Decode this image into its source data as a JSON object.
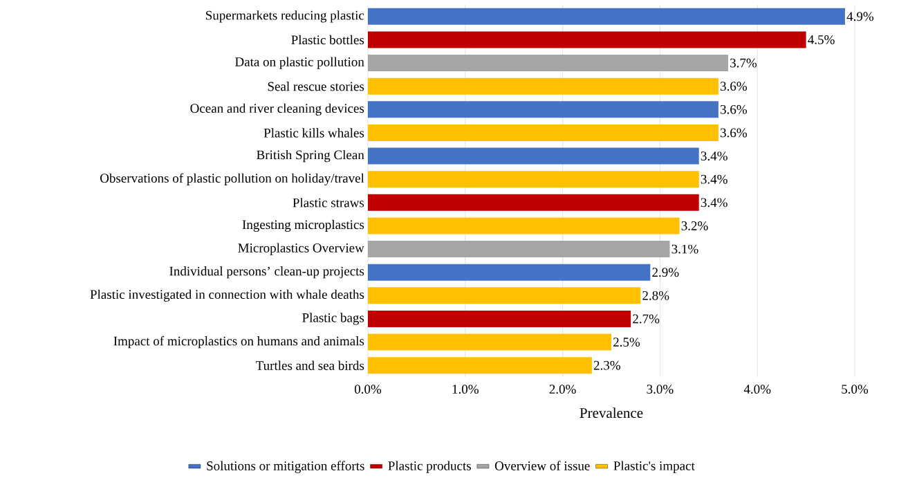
{
  "chart_data": {
    "type": "bar",
    "orientation": "horizontal",
    "xlabel": "Prevalence",
    "categories": [
      "Supermarkets reducing plastic",
      "Plastic bottles",
      "Data on plastic pollution",
      "Seal rescue stories",
      "Ocean and river cleaning devices",
      "Plastic kills whales",
      "British Spring Clean",
      "Observations of plastic pollution on holiday/travel",
      "Plastic straws",
      "Ingesting microplastics",
      "Microplastics Overview",
      "Individual persons’ clean-up projects",
      "Plastic investigated in connection with whale deaths",
      "Plastic bags",
      "Impact of microplastics on humans and animals",
      "Turtles and sea birds"
    ],
    "series": [
      {
        "name": "Solutions or mitigation efforts",
        "color": "#4472c4",
        "values": [
          4.9,
          null,
          null,
          null,
          3.6,
          null,
          3.4,
          null,
          null,
          null,
          null,
          2.9,
          null,
          null,
          null,
          null
        ],
        "value_labels": [
          "4.9%",
          null,
          null,
          null,
          "3.6%",
          null,
          "3.4%",
          null,
          null,
          null,
          null,
          "2.9%",
          null,
          null,
          null,
          null
        ]
      },
      {
        "name": "Plastic products",
        "color": "#c00000",
        "values": [
          null,
          4.5,
          null,
          null,
          null,
          null,
          null,
          null,
          3.4,
          null,
          null,
          null,
          null,
          2.7,
          null,
          null
        ],
        "value_labels": [
          null,
          "4.5%",
          null,
          null,
          null,
          null,
          null,
          null,
          "3.4%",
          null,
          null,
          null,
          null,
          "2.7%",
          null,
          null
        ]
      },
      {
        "name": "Overview of issue",
        "color": "#a5a5a5",
        "values": [
          null,
          null,
          3.7,
          null,
          null,
          null,
          null,
          null,
          null,
          null,
          3.1,
          null,
          null,
          null,
          null,
          null
        ],
        "value_labels": [
          null,
          null,
          "3.7%",
          null,
          null,
          null,
          null,
          null,
          null,
          null,
          "3.1%",
          null,
          null,
          null,
          null,
          null
        ]
      },
      {
        "name": "Plastic's impact",
        "color": "#ffc000",
        "values": [
          null,
          null,
          null,
          3.6,
          null,
          3.6,
          null,
          3.4,
          null,
          3.2,
          null,
          null,
          2.8,
          null,
          2.5,
          2.3
        ],
        "value_labels": [
          null,
          null,
          null,
          "3.6%",
          null,
          "3.6%",
          null,
          "3.4%",
          null,
          "3.2%",
          null,
          null,
          "2.8%",
          null,
          "2.5%",
          "2.3%"
        ]
      }
    ],
    "xlim": [
      0,
      5
    ],
    "xticks": [
      {
        "value": 0,
        "label": "0.0%"
      },
      {
        "value": 1,
        "label": "1.0%"
      },
      {
        "value": 2,
        "label": "2.0%"
      },
      {
        "value": 3,
        "label": "3.0%"
      },
      {
        "value": 4,
        "label": "4.0%"
      },
      {
        "value": 5,
        "label": "5.0%"
      }
    ],
    "grid": "x",
    "legend": "bottom"
  }
}
